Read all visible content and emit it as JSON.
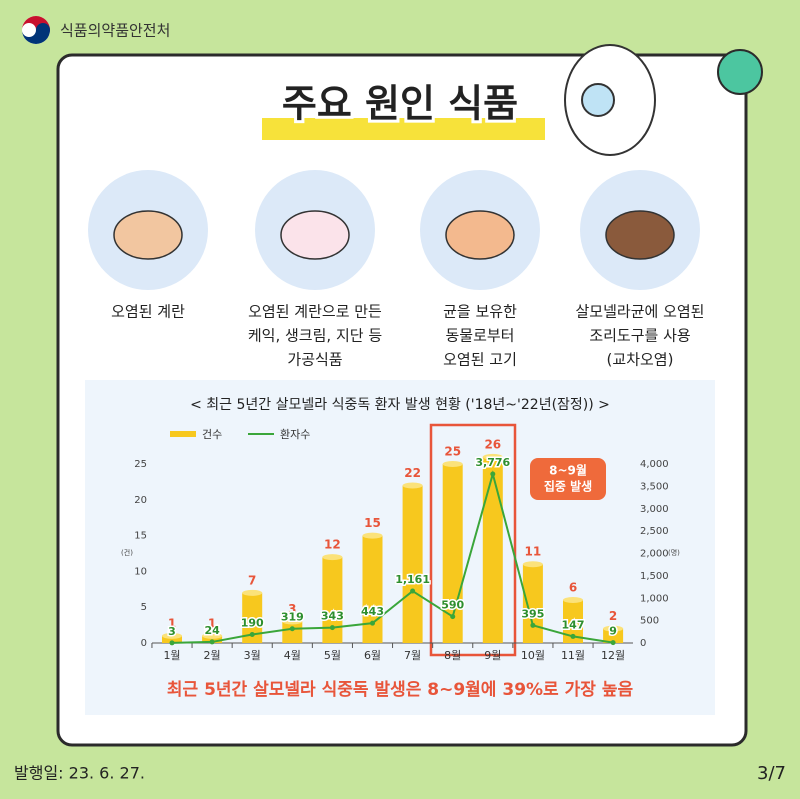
{
  "header": {
    "agency": "식품의약품안전처",
    "title": "주요 원인 식품"
  },
  "foods": [
    {
      "lines": [
        "오염된 계란"
      ]
    },
    {
      "lines": [
        "오염된 계란으로 만든",
        "케익, 생크림, 지단 등",
        "가공식품"
      ]
    },
    {
      "lines": [
        "균을 보유한",
        "동물로부터",
        "오염된 고기"
      ]
    },
    {
      "lines": [
        "살모넬라균에 오염된",
        "조리도구를 사용",
        "(교차오염)"
      ]
    }
  ],
  "chart_data": {
    "type": "bar",
    "title": "< 최근 5년간 살모넬라 식중독 환자 발생 현황 ('18년~'22년(잠정)) >",
    "categories": [
      "1월",
      "2월",
      "3월",
      "4월",
      "5월",
      "6월",
      "7월",
      "8월",
      "9월",
      "10월",
      "11월",
      "12월"
    ],
    "series": [
      {
        "name": "건수",
        "type": "bar",
        "color": "#f7c81e",
        "values": [
          1,
          1,
          7,
          3,
          12,
          15,
          22,
          25,
          26,
          11,
          6,
          2
        ]
      },
      {
        "name": "환자수",
        "type": "line",
        "axis": "y2",
        "color": "#3aa63a",
        "values": [
          3,
          24,
          190,
          319,
          343,
          443,
          1161,
          590,
          3776,
          395,
          147,
          9
        ],
        "value_labels": [
          "3",
          "24",
          "190",
          "319",
          "343",
          "443",
          "1,161",
          "590",
          "3,776",
          "395",
          "147",
          "9"
        ]
      }
    ],
    "ylabel": "(건)",
    "ylim": [
      0,
      25
    ],
    "yticks": [
      0,
      5,
      10,
      15,
      20,
      25
    ],
    "y2label": "(명)",
    "y2lim": [
      0,
      4000
    ],
    "y2ticks": [
      0,
      500,
      {
        "value": 1000,
        "label": "1,000"
      },
      {
        "value": 1500,
        "label": "1,500"
      },
      {
        "value": 2000,
        "label": "2,000"
      },
      {
        "value": 2500,
        "label": "2,500"
      },
      {
        "value": 3000,
        "label": "3,000"
      },
      {
        "value": 3500,
        "label": "3,500"
      },
      {
        "value": 4000,
        "label": "4,000"
      }
    ],
    "annotation": [
      "8~9월",
      "집중 발생"
    ],
    "caption": "최근 5년간 살모넬라 식중독 발생은 8~9월에 39%로 가장 높음"
  },
  "footer": {
    "date": "발행일: 23. 6. 27.",
    "page": "3/7"
  }
}
